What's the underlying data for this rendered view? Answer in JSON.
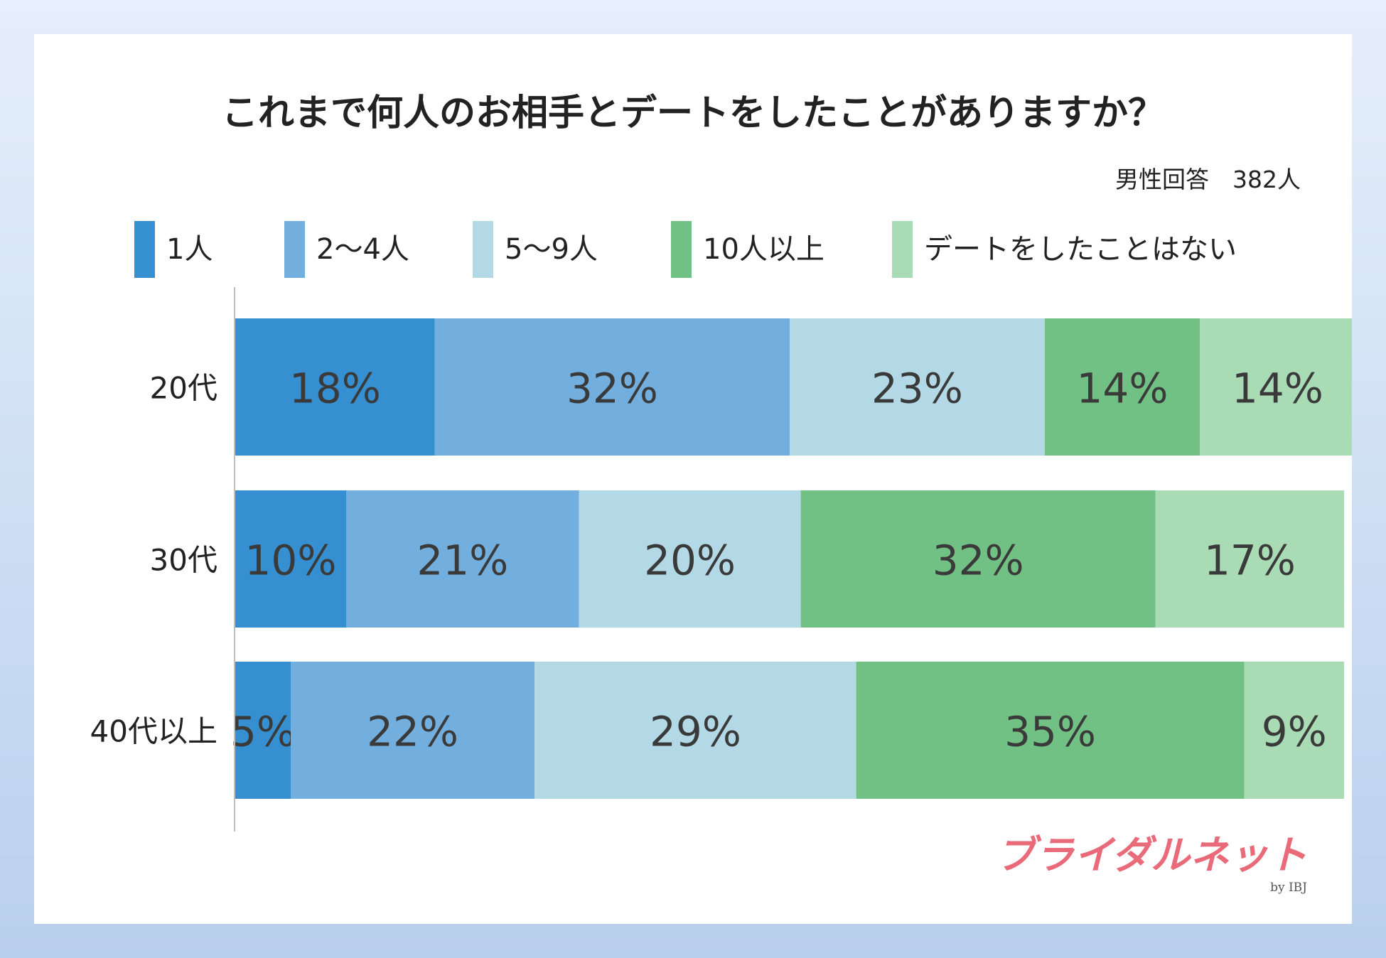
{
  "chart_data": {
    "type": "bar",
    "orientation": "horizontal",
    "stacked": true,
    "title": "これまで何人のお相手とデートをしたことがありますか？",
    "subtitle": "男性回答　382人",
    "categories": [
      "20代",
      "30代",
      "40代以上"
    ],
    "series": [
      {
        "name": "1人",
        "color": "#368fd0",
        "values": [
          18,
          10,
          5
        ],
        "labels": [
          "18%",
          "10%",
          "5%"
        ]
      },
      {
        "name": "2〜4人",
        "color": "#73afde",
        "values": [
          32,
          21,
          22
        ],
        "labels": [
          "32%",
          "21%",
          "22%"
        ]
      },
      {
        "name": "5〜9人",
        "color": "#b3d9e7",
        "values": [
          23,
          20,
          29
        ],
        "labels": [
          "23%",
          "20%",
          "29%"
        ]
      },
      {
        "name": "10人以上",
        "color": "#72c184",
        "values": [
          14,
          32,
          35
        ],
        "labels": [
          "14%",
          "32%",
          "35%"
        ]
      },
      {
        "name": "デートをしたことはない",
        "color": "#a9dbb5",
        "values": [
          14,
          17,
          9
        ],
        "labels": [
          "14%",
          "17%",
          "9%"
        ]
      }
    ],
    "xlim": [
      0,
      100
    ],
    "legend_position": "top",
    "grid": false
  },
  "brand": {
    "logo_text": "ブライダルネット",
    "logo_sub": "by IBJ",
    "logo_color": "#e96b7a"
  }
}
